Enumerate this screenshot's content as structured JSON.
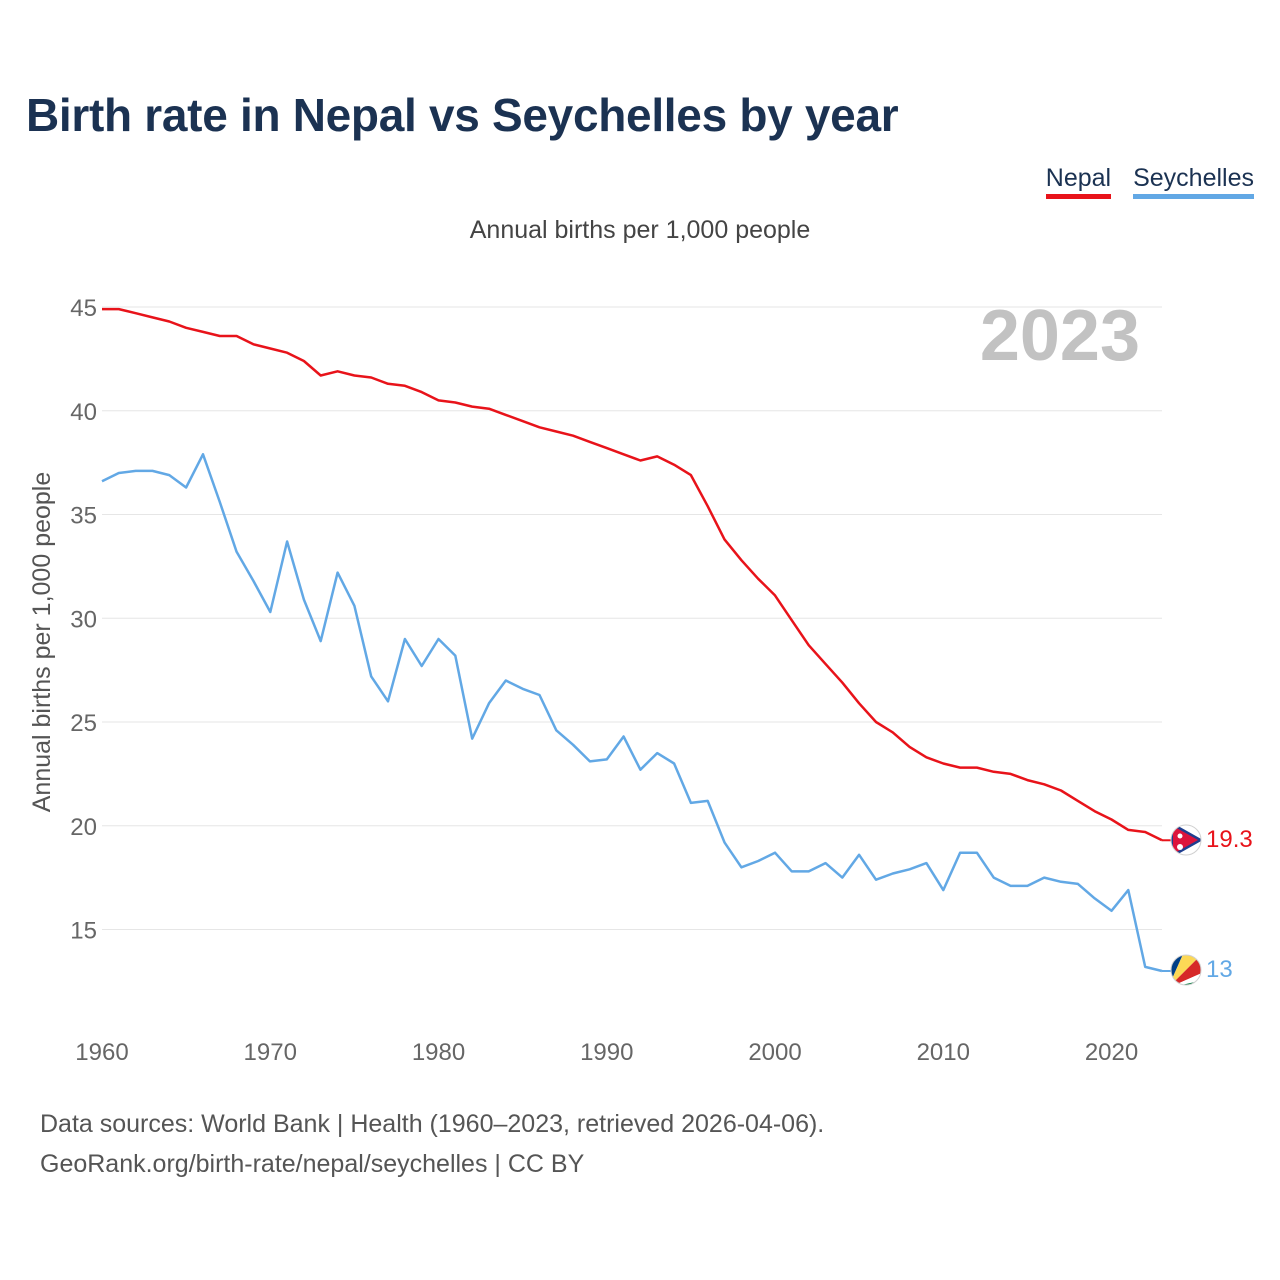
{
  "title": "Birth rate in Nepal vs Seychelles by year",
  "subtitle": "Annual births per 1,000 people",
  "legend": [
    {
      "name": "Nepal",
      "color": "#e8131a"
    },
    {
      "name": "Seychelles",
      "color": "#62a8e5"
    }
  ],
  "year_label": "2023",
  "footer": {
    "line1": "Data sources: World Bank | Health (1960–2023, retrieved 2026-04-06).",
    "line2": "GeoRank.org/birth-rate/nepal/seychelles | CC BY"
  },
  "chart_data": {
    "type": "line",
    "title": "Birth rate in Nepal vs Seychelles by year",
    "xlabel": "",
    "ylabel": "Annual births per 1,000 people",
    "xlim": [
      1960,
      2023
    ],
    "ylim": [
      12,
      45
    ],
    "x_ticks": [
      1960,
      1970,
      1980,
      1990,
      2000,
      2010,
      2020
    ],
    "y_ticks": [
      15,
      20,
      25,
      30,
      35,
      40,
      45
    ],
    "grid": true,
    "x": [
      1960,
      1961,
      1962,
      1963,
      1964,
      1965,
      1966,
      1967,
      1968,
      1969,
      1970,
      1971,
      1972,
      1973,
      1974,
      1975,
      1976,
      1977,
      1978,
      1979,
      1980,
      1981,
      1982,
      1983,
      1984,
      1985,
      1986,
      1987,
      1988,
      1989,
      1990,
      1991,
      1992,
      1993,
      1994,
      1995,
      1996,
      1997,
      1998,
      1999,
      2000,
      2001,
      2002,
      2003,
      2004,
      2005,
      2006,
      2007,
      2008,
      2009,
      2010,
      2011,
      2012,
      2013,
      2014,
      2015,
      2016,
      2017,
      2018,
      2019,
      2020,
      2021,
      2022,
      2023
    ],
    "series": [
      {
        "name": "Nepal",
        "color": "#e8131a",
        "end_label": "19.3",
        "values": [
          44.9,
          44.9,
          44.7,
          44.5,
          44.3,
          44.0,
          43.8,
          43.6,
          43.6,
          43.2,
          43.0,
          42.8,
          42.4,
          41.7,
          41.9,
          41.7,
          41.6,
          41.3,
          41.2,
          40.9,
          40.5,
          40.4,
          40.2,
          40.1,
          39.8,
          39.5,
          39.2,
          39.0,
          38.8,
          38.5,
          38.2,
          37.9,
          37.6,
          37.8,
          37.4,
          36.9,
          35.4,
          33.8,
          32.8,
          31.9,
          31.1,
          29.9,
          28.7,
          27.8,
          26.9,
          25.9,
          25.0,
          24.5,
          23.8,
          23.3,
          23.0,
          22.8,
          22.8,
          22.6,
          22.5,
          22.2,
          22.0,
          21.7,
          21.2,
          20.7,
          20.3,
          19.8,
          19.7,
          19.3
        ]
      },
      {
        "name": "Seychelles",
        "color": "#62a8e5",
        "end_label": "13",
        "values": [
          36.6,
          37.0,
          37.1,
          37.1,
          36.9,
          36.3,
          37.9,
          35.6,
          33.2,
          31.8,
          30.3,
          33.7,
          30.9,
          28.9,
          32.2,
          30.6,
          27.2,
          26.0,
          29.0,
          27.7,
          29.0,
          28.2,
          24.2,
          25.9,
          27.0,
          26.6,
          26.3,
          24.6,
          23.9,
          23.1,
          23.2,
          24.3,
          22.7,
          23.5,
          23.0,
          21.1,
          21.2,
          19.2,
          18.0,
          18.3,
          18.7,
          17.8,
          17.8,
          18.2,
          17.5,
          18.6,
          17.4,
          17.7,
          17.9,
          18.2,
          16.9,
          18.7,
          18.7,
          17.5,
          17.1,
          17.1,
          17.5,
          17.3,
          17.2,
          16.5,
          15.9,
          16.9,
          13.2,
          13.0
        ]
      }
    ]
  }
}
